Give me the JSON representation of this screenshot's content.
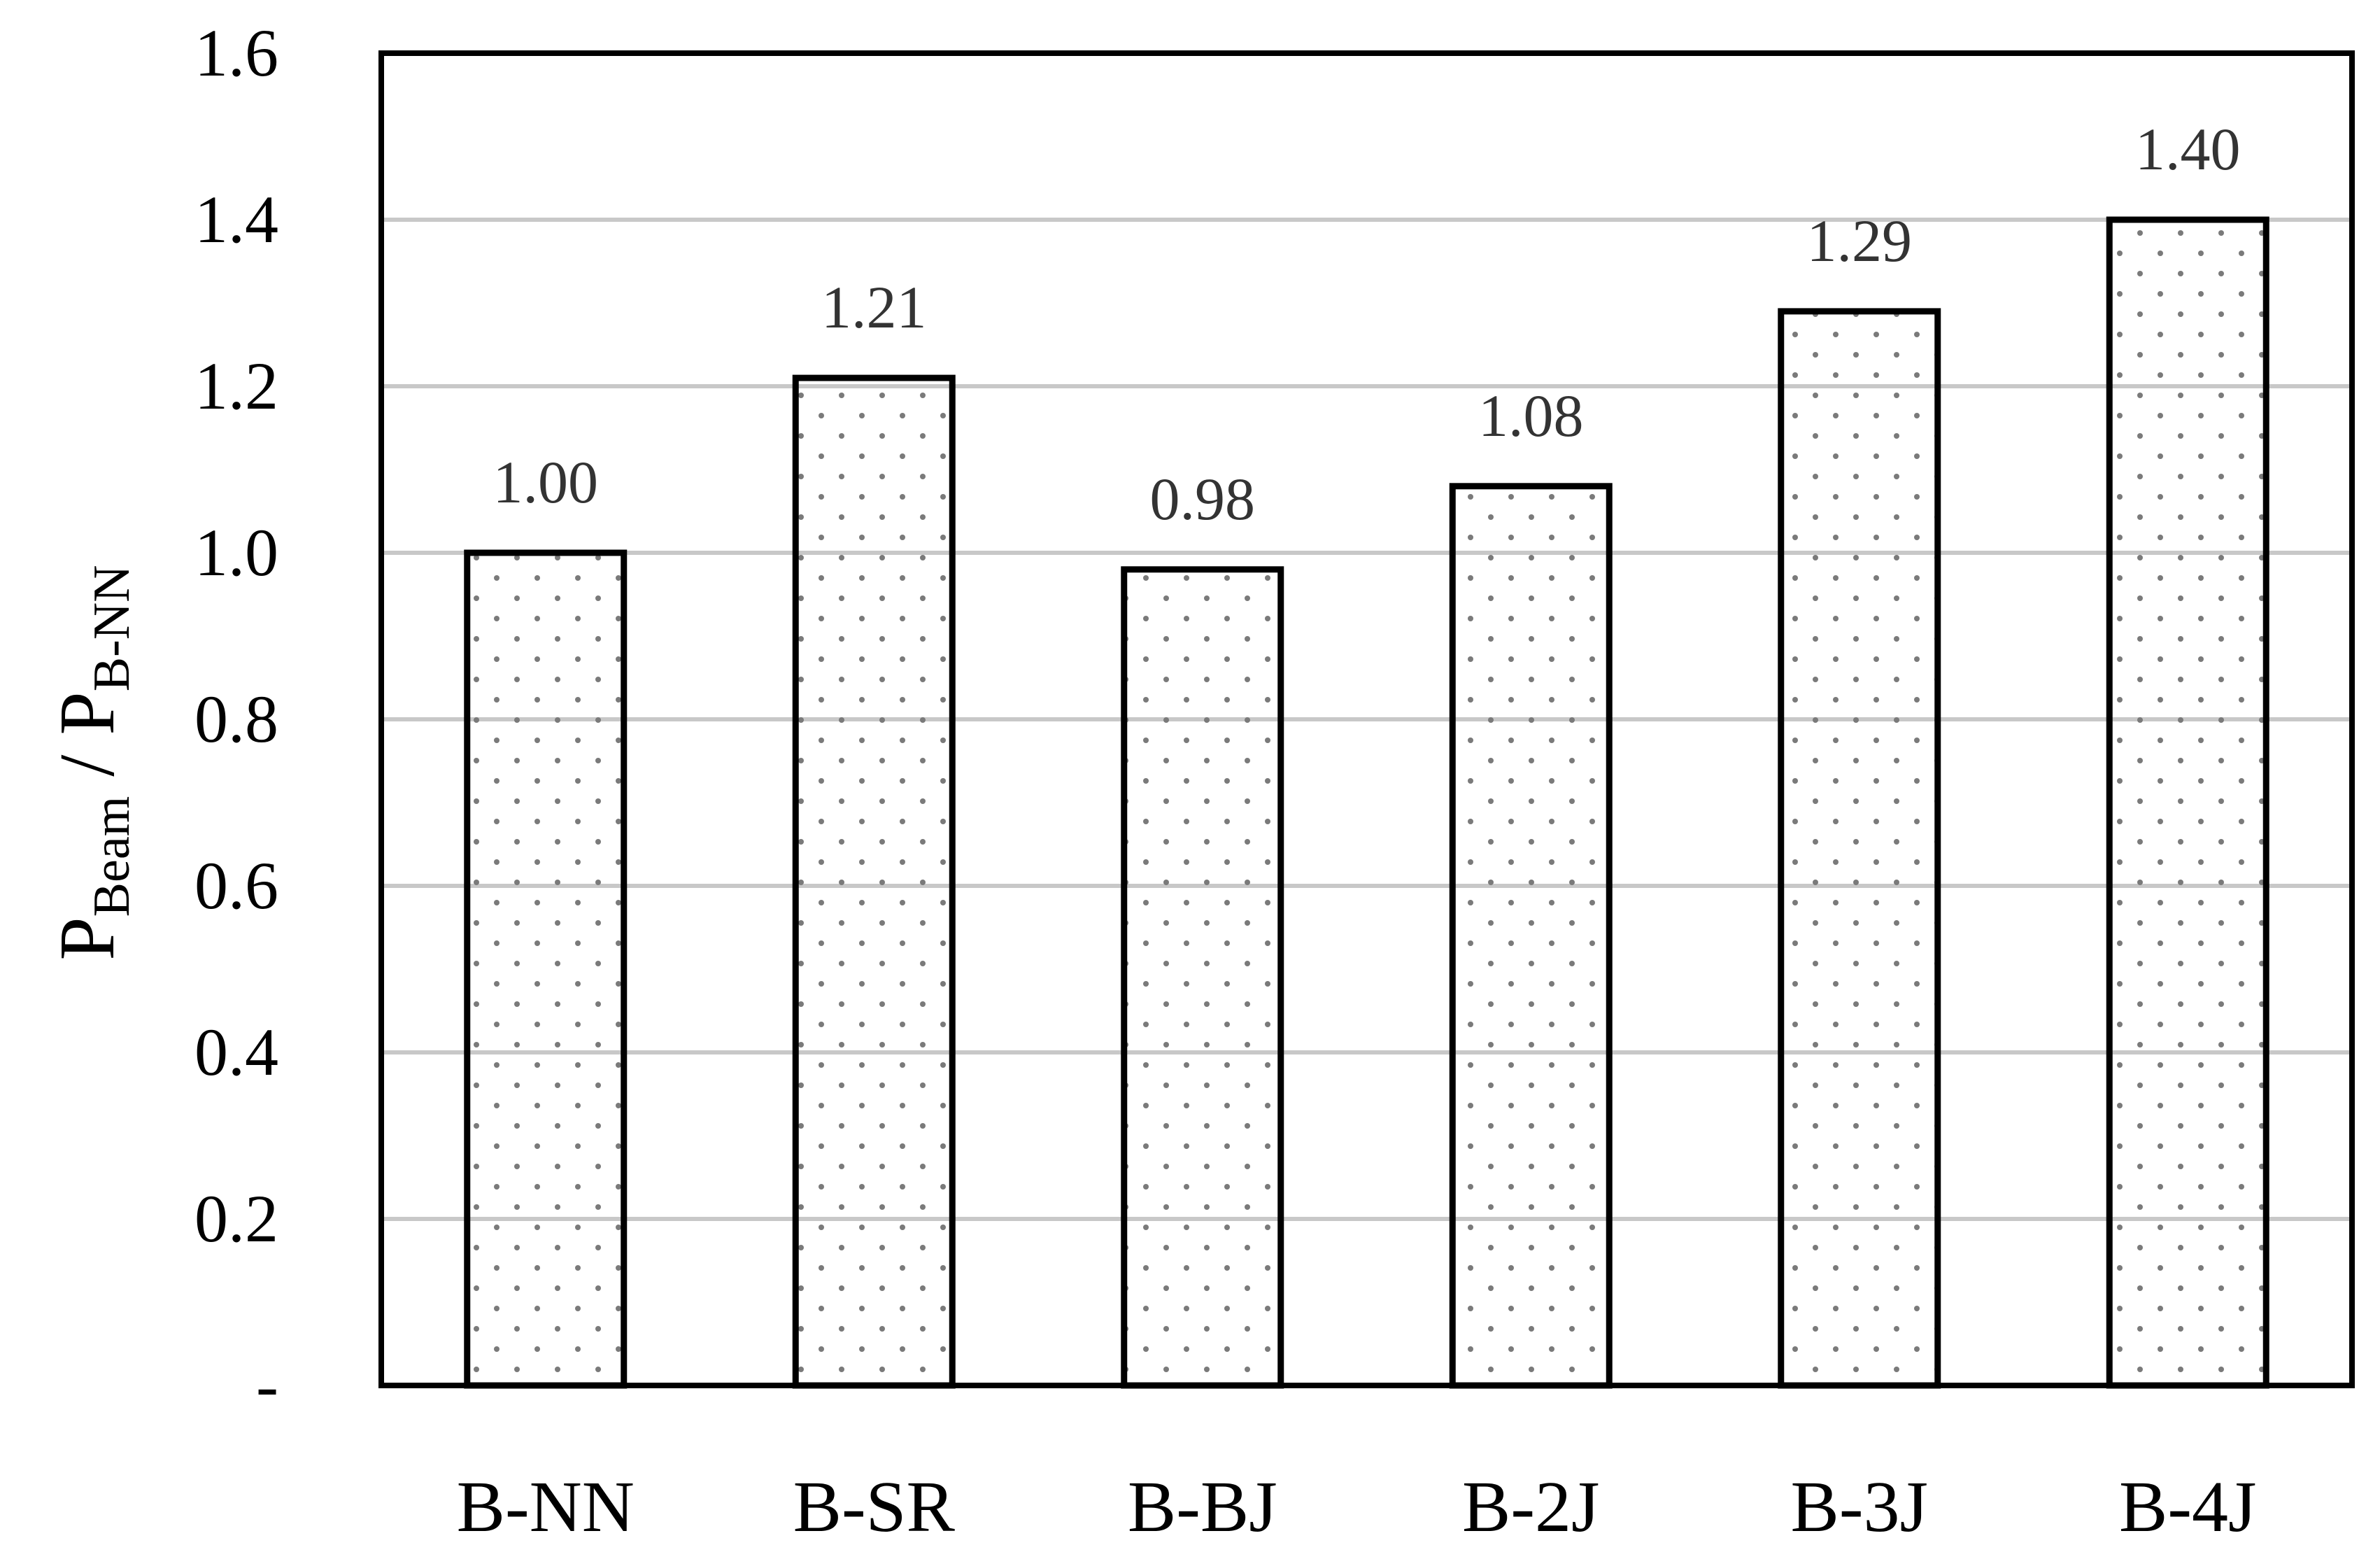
{
  "chart_data": {
    "type": "bar",
    "categories": [
      "B-NN",
      "B-SR",
      "B-BJ",
      "B-2J",
      "B-3J",
      "B-4J"
    ],
    "values": [
      1.0,
      1.21,
      0.98,
      1.08,
      1.29,
      1.4
    ],
    "data_labels": [
      "1.00",
      "1.21",
      "0.98",
      "1.08",
      "1.29",
      "1.40"
    ],
    "ylim": [
      0,
      1.6
    ],
    "yticks": [
      0,
      0.2,
      0.4,
      0.6,
      0.8,
      1.0,
      1.2,
      1.4,
      1.6
    ],
    "ytick_labels": [
      "-",
      "0.2",
      "0.4",
      "0.6",
      "0.8",
      "1.0",
      "1.2",
      "1.4",
      "1.6"
    ],
    "ylabel": {
      "main1": "P",
      "sub1": "Beam",
      "sep": " / ",
      "main2": "P",
      "sub2": "B-NN"
    },
    "xlabel": "",
    "title": "",
    "grid": "horizontal",
    "legend": "none",
    "colors": {
      "bar_fill": "#ffffff",
      "bar_stroke": "#000000",
      "bar_dots": "#7a7a7a",
      "grid": "#c8c8c8",
      "frame": "#000000",
      "data_label": "#333333"
    }
  }
}
